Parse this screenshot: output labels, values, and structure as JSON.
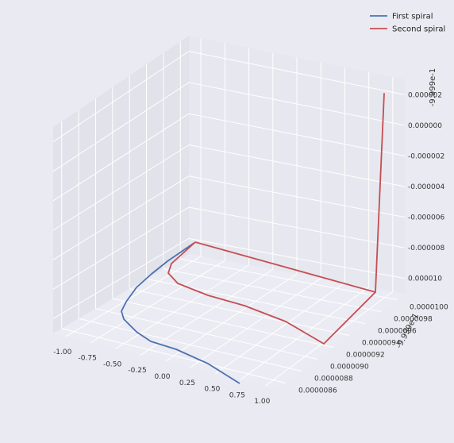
{
  "chart_data": {
    "type": "line",
    "projection": "3d",
    "title": "",
    "grid": true,
    "legend_position": "top-right",
    "colors": {
      "background": "#eaeaf2",
      "grid": "#ffffff",
      "pane_left": "#e2e2ea",
      "pane_back": "#e7e7ef",
      "pane_floor": "#ebebf3",
      "first": "#4c72b0",
      "second": "#c44e52"
    },
    "axes": {
      "x": {
        "ticks": [
          "-1.00",
          "-0.75",
          "-0.50",
          "-0.25",
          "0.00",
          "0.25",
          "0.50",
          "0.75",
          "1.00"
        ],
        "lim": [
          -1.0,
          1.0
        ]
      },
      "y": {
        "ticks": [
          "0.0000086",
          "0.0000088",
          "0.0000090",
          "0.0000092",
          "0.0000094",
          "0.0000096",
          "0.0000098",
          "0.0000100"
        ],
        "offset_text": "-9.999e-1"
      },
      "z": {
        "ticks": [
          "0.000010",
          "0.000008",
          "0.000006",
          "0.000004",
          "0.000002",
          "0.000000",
          "0.000002"
        ],
        "offset_text": "-9.999e-1"
      }
    },
    "series": [
      {
        "name": "First spiral",
        "color": "#4c72b0",
        "note": "x from about 0.8 back to about -1.05, near the front of the box",
        "x": [
          0.78,
          0.5,
          0.2,
          -0.1,
          -0.4,
          -0.65,
          -0.85,
          -1.0,
          -1.05,
          -1.0
        ],
        "y": [
          8.5e-06,
          8.6e-06,
          8.8e-06,
          9e-06,
          9.3e-06,
          9.5e-06,
          9.7e-06,
          9.8e-06,
          9.9e-06,
          1e-05
        ],
        "z": [
          -1.2e-05,
          -1.2e-05,
          -1.2e-05,
          -1.2e-05,
          -1.2e-05,
          -1.2e-05,
          -1.2e-05,
          -1.2e-05,
          -1.2e-05,
          -1.2e-05
        ]
      },
      {
        "name": "Second spiral",
        "color": "#c44e52"
      }
    ]
  },
  "legend": {
    "items": [
      {
        "label": "First spiral",
        "color": "#4c72b0"
      },
      {
        "label": "Second spiral",
        "color": "#c44e52"
      }
    ]
  }
}
